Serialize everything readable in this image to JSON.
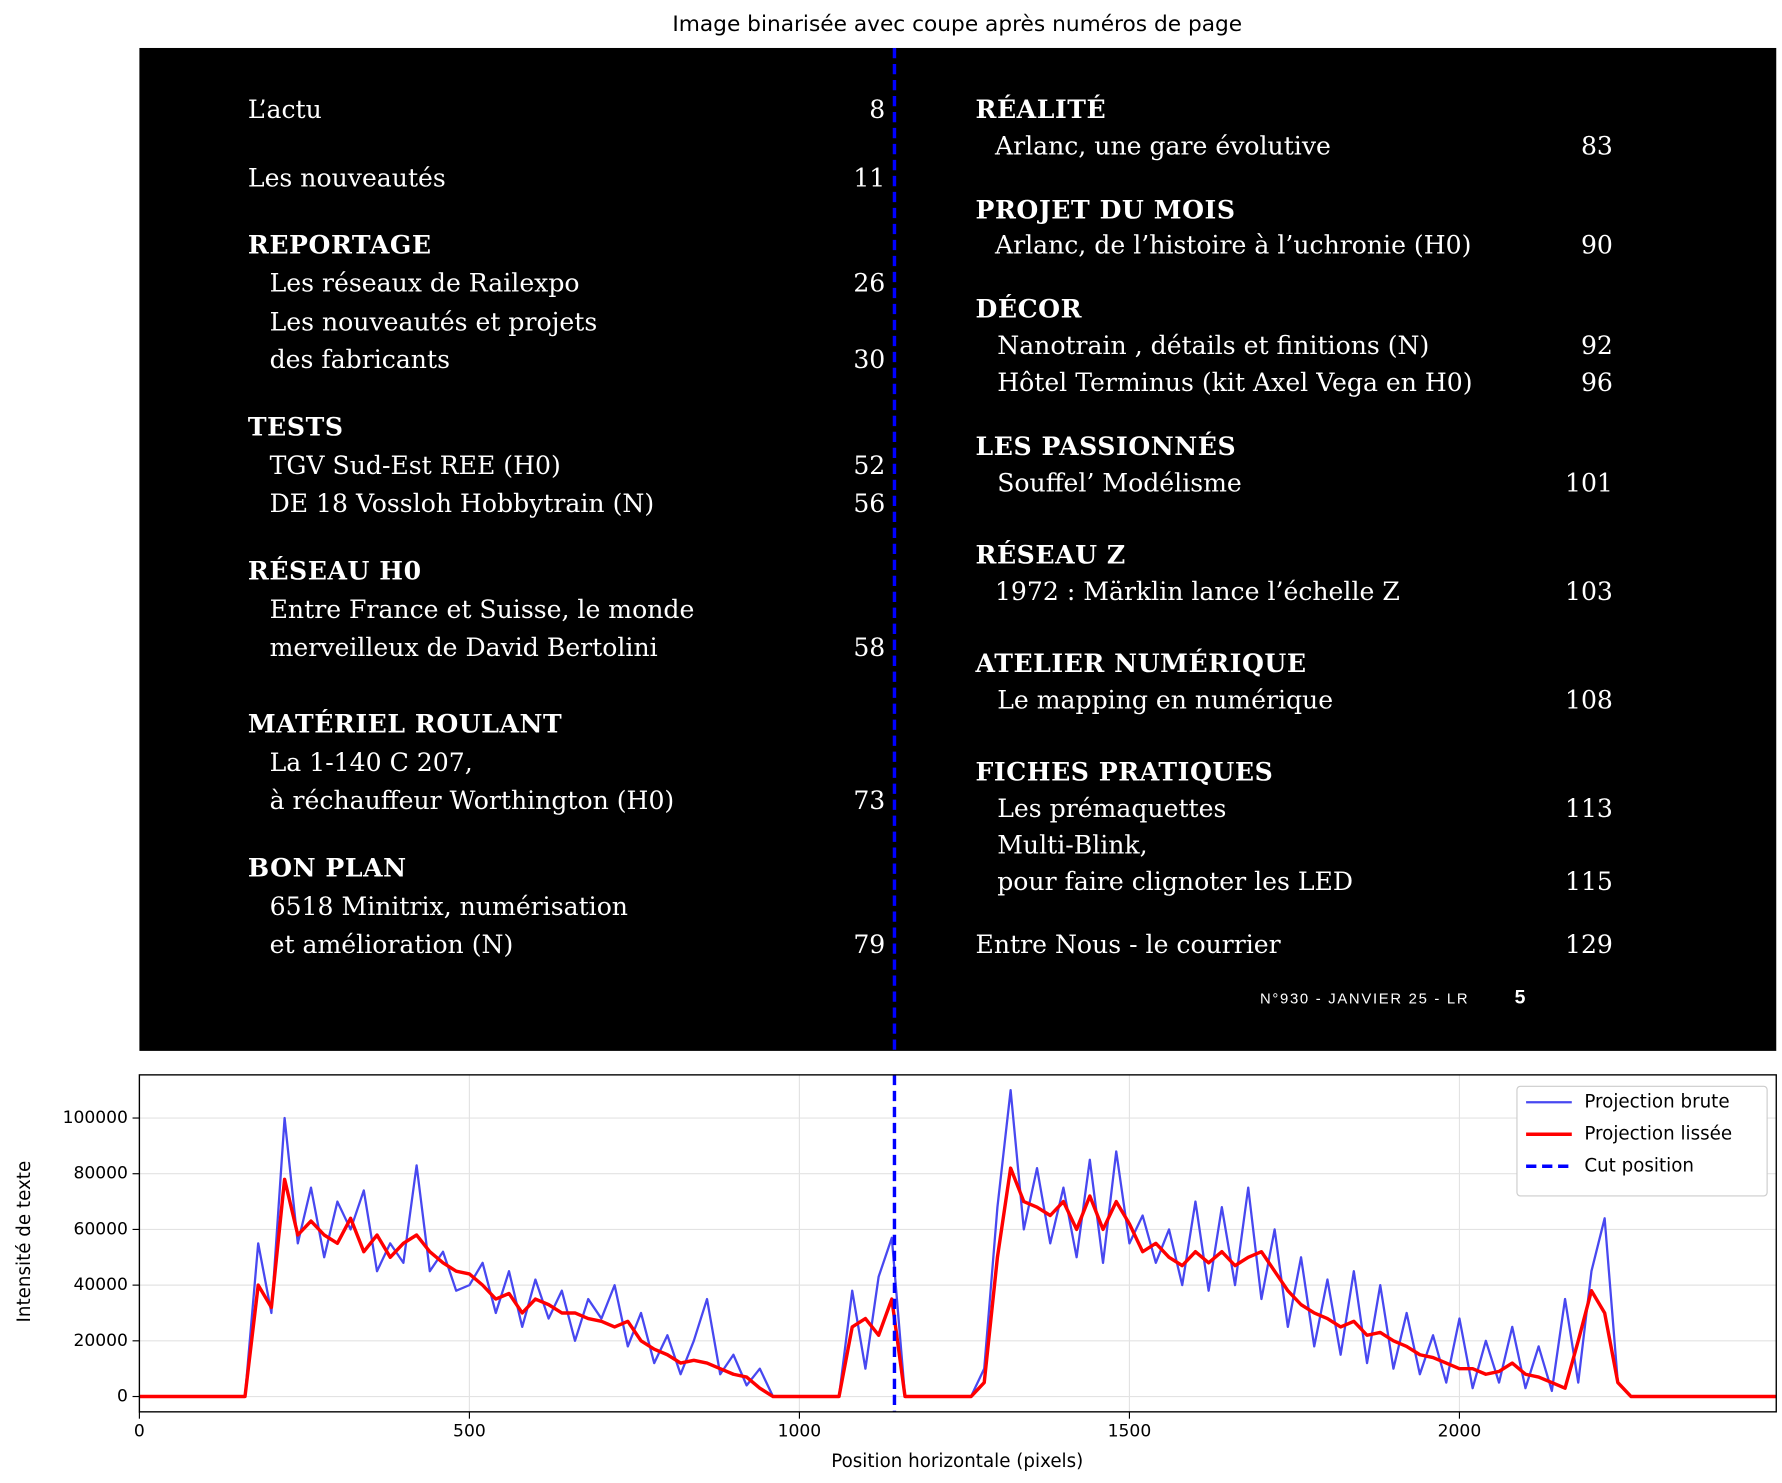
{
  "chart_data": [
    {
      "type": "image",
      "title": "Image binarisée avec coupe après numéros de page",
      "background": "#000000",
      "text_color": "#ffffff",
      "left_column": [
        {
          "text": "L’actu",
          "page": 8
        },
        {
          "text": "Les nouveautés",
          "page": 11
        },
        {
          "text": "REPORTAGE"
        },
        {
          "text": "Les réseaux de Railexpo",
          "page": 26
        },
        {
          "text": "Les nouveautés et projets"
        },
        {
          "text": "des fabricants",
          "page": 30
        },
        {
          "text": "TESTS"
        },
        {
          "text": "TGV Sud-Est REE (H0)",
          "page": 52
        },
        {
          "text": "DE 18 Vossloh Hobbytrain (N)",
          "page": 56
        },
        {
          "text": "RÉSEAU H0"
        },
        {
          "text": "Entre France et Suisse, le monde"
        },
        {
          "text": "merveilleux de David Bertolini",
          "page": 58
        },
        {
          "text": "MATÉRIEL ROULANT"
        },
        {
          "text": "La 1-140 C 207,"
        },
        {
          "text": "à réchauffeur Worthington (H0)",
          "page": 73
        },
        {
          "text": "BON PLAN"
        },
        {
          "text": "6518 Minitrix, numérisation"
        },
        {
          "text": "et amélioration (N)",
          "page": 79
        }
      ],
      "right_column": [
        {
          "text": "RÉALITÉ"
        },
        {
          "text": "Arlanc, une gare évolutive",
          "page": 83
        },
        {
          "text": "PROJET DU MOIS"
        },
        {
          "text": "Arlanc, de l’histoire à l’uchronie (H0)",
          "page": 90
        },
        {
          "text": "DÉCOR"
        },
        {
          "text": "Nanotrain , détails et finitions (N)",
          "page": 92
        },
        {
          "text": "Hôtel Terminus (kit Axel Vega en H0)",
          "page": 96
        },
        {
          "text": "LES PASSIONNÉS"
        },
        {
          "text": "Souffel’ Modélisme",
          "page": 101
        },
        {
          "text": "RÉSEAU Z"
        },
        {
          "text": "1972 : Märklin lance l’échelle Z",
          "page": 103
        },
        {
          "text": "ATELIER NUMÉRIQUE"
        },
        {
          "text": "Le mapping en numérique",
          "page": 108
        },
        {
          "text": "FICHES PRATIQUES"
        },
        {
          "text": "Les prémaquettes",
          "page": 113
        },
        {
          "text": "Multi-Blink,"
        },
        {
          "text": "pour faire clignoter les LED",
          "page": 115
        },
        {
          "text": "Entre Nous - le courrier",
          "page": 129
        }
      ],
      "footer": "N°930 - JANVIER 25 - LR",
      "folio": 5
    },
    {
      "type": "line",
      "xlabel": "Position horizontale (pixels)",
      "ylabel": "Intensité de texte",
      "xlim": [
        0,
        2480
      ],
      "ylim": [
        -5500,
        115500
      ],
      "xticks": [
        0,
        500,
        1000,
        1500,
        2000
      ],
      "yticks": [
        0,
        20000,
        40000,
        60000,
        80000,
        100000
      ],
      "grid": true,
      "legend": "upper right",
      "x": [
        0,
        20,
        40,
        60,
        80,
        100,
        120,
        140,
        160,
        180,
        200,
        220,
        240,
        260,
        280,
        300,
        320,
        340,
        360,
        380,
        400,
        420,
        440,
        460,
        480,
        500,
        520,
        540,
        560,
        580,
        600,
        620,
        640,
        660,
        680,
        700,
        720,
        740,
        760,
        780,
        800,
        820,
        840,
        860,
        880,
        900,
        920,
        940,
        960,
        980,
        1000,
        1020,
        1040,
        1060,
        1080,
        1100,
        1120,
        1140,
        1160,
        1180,
        1200,
        1220,
        1240,
        1260,
        1280,
        1300,
        1320,
        1340,
        1360,
        1380,
        1400,
        1420,
        1440,
        1460,
        1480,
        1500,
        1520,
        1540,
        1560,
        1580,
        1600,
        1620,
        1640,
        1660,
        1680,
        1700,
        1720,
        1740,
        1760,
        1780,
        1800,
        1820,
        1840,
        1860,
        1880,
        1900,
        1920,
        1940,
        1960,
        1980,
        2000,
        2020,
        2040,
        2060,
        2080,
        2100,
        2120,
        2140,
        2160,
        2180,
        2200,
        2220,
        2240,
        2260,
        2280,
        2300,
        2320,
        2340,
        2360,
        2380,
        2400,
        2420,
        2440,
        2460,
        2480
      ],
      "series": [
        {
          "name": "Projection brute",
          "color": "#4848f0",
          "width": 2,
          "values": [
            0,
            0,
            0,
            0,
            0,
            0,
            0,
            0,
            0,
            55000,
            30000,
            100000,
            55000,
            75000,
            50000,
            70000,
            60000,
            74000,
            45000,
            55000,
            48000,
            83000,
            45000,
            52000,
            38000,
            40000,
            48000,
            30000,
            45000,
            25000,
            42000,
            28000,
            38000,
            20000,
            35000,
            28000,
            40000,
            18000,
            30000,
            12000,
            22000,
            8000,
            20000,
            35000,
            8000,
            15000,
            4000,
            10000,
            0,
            0,
            0,
            0,
            0,
            0,
            38000,
            10000,
            43000,
            57000,
            0,
            0,
            0,
            0,
            0,
            0,
            10000,
            68000,
            110000,
            60000,
            82000,
            55000,
            75000,
            50000,
            85000,
            48000,
            88000,
            55000,
            65000,
            48000,
            60000,
            40000,
            70000,
            38000,
            68000,
            40000,
            75000,
            35000,
            60000,
            25000,
            50000,
            18000,
            42000,
            15000,
            45000,
            12000,
            40000,
            10000,
            30000,
            8000,
            22000,
            5000,
            28000,
            3000,
            20000,
            5000,
            25000,
            3000,
            18000,
            2000,
            35000,
            5000,
            45000,
            64000,
            5000,
            0,
            0,
            0,
            0,
            0,
            0,
            0,
            0,
            0,
            0,
            0,
            0
          ]
        },
        {
          "name": "Projection lissée",
          "color": "#ff0000",
          "width": 3,
          "values": [
            0,
            0,
            0,
            0,
            0,
            0,
            0,
            0,
            0,
            40000,
            32000,
            78000,
            58000,
            63000,
            58000,
            55000,
            64000,
            52000,
            58000,
            50000,
            55000,
            58000,
            52000,
            48000,
            45000,
            44000,
            40000,
            35000,
            37000,
            30000,
            35000,
            33000,
            30000,
            30000,
            28000,
            27000,
            25000,
            27000,
            20000,
            17000,
            15000,
            12000,
            13000,
            12000,
            10000,
            8000,
            7000,
            3000,
            0,
            0,
            0,
            0,
            0,
            0,
            25000,
            28000,
            22000,
            35000,
            0,
            0,
            0,
            0,
            0,
            0,
            5000,
            50000,
            82000,
            70000,
            68000,
            65000,
            70000,
            60000,
            72000,
            60000,
            70000,
            62000,
            52000,
            55000,
            50000,
            47000,
            52000,
            48000,
            52000,
            47000,
            50000,
            52000,
            45000,
            38000,
            33000,
            30000,
            28000,
            25000,
            27000,
            22000,
            23000,
            20000,
            18000,
            15000,
            14000,
            12000,
            10000,
            10000,
            8000,
            9000,
            12000,
            8000,
            7000,
            5000,
            3000,
            20000,
            38000,
            30000,
            5000,
            0,
            0,
            0,
            0,
            0,
            0,
            0,
            0,
            0,
            0,
            0,
            0
          ]
        }
      ],
      "vlines": [
        {
          "name": "Cut position",
          "color": "#0000ff",
          "x": 1144,
          "dash": true
        }
      ]
    }
  ]
}
